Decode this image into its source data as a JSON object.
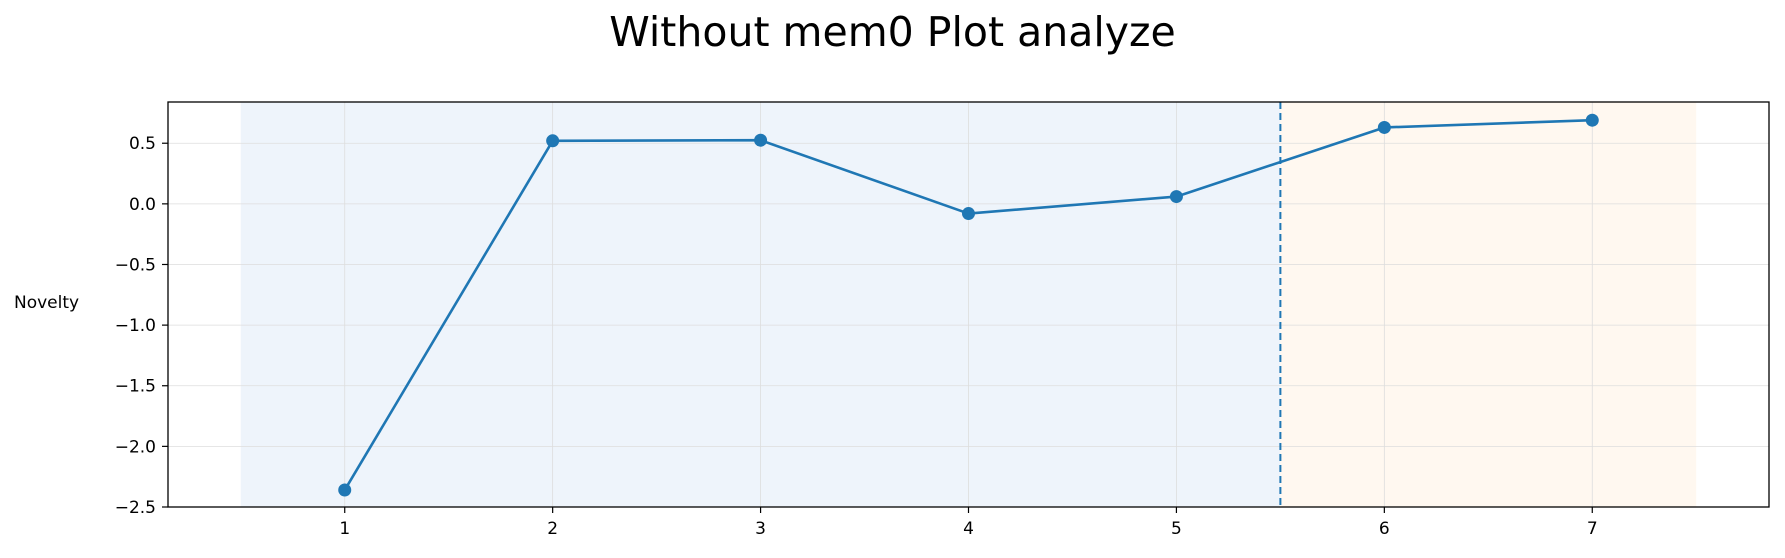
{
  "chart_data": {
    "type": "line",
    "title": "Without mem0 Plot analyze",
    "xlabel": "",
    "ylabel": "Novelty",
    "x": [
      1,
      2,
      3,
      4,
      5,
      6,
      7
    ],
    "series": [
      {
        "name": "Novelty",
        "values": [
          -2.36,
          0.52,
          0.525,
          -0.08,
          0.06,
          0.63,
          0.69
        ]
      }
    ],
    "xlim": [
      0.15,
      7.85
    ],
    "ylim": [
      -2.5,
      0.84
    ],
    "xticks": [
      "1",
      "2",
      "3",
      "4",
      "5",
      "6",
      "7"
    ],
    "yticks": [
      0.5,
      0.0,
      -0.5,
      -1.0,
      -1.5,
      -2.0,
      -2.5
    ],
    "ytick_labels": [
      "0.5",
      "0.0",
      "−0.5",
      "−1.0",
      "−1.5",
      "−2.0",
      "−2.5"
    ],
    "grid": true,
    "shaded_regions": [
      {
        "name": "phase-1",
        "x_start": 0.5,
        "x_end": 5.5,
        "color": "#eef4fb"
      },
      {
        "name": "phase-2",
        "x_start": 5.5,
        "x_end": 7.5,
        "color": "#fff8f0"
      }
    ],
    "vline": {
      "x": 5.5,
      "style": "dashed"
    },
    "colors": {
      "line": "#1f77b4",
      "grid": "#dddddd",
      "axis": "#000000"
    }
  }
}
